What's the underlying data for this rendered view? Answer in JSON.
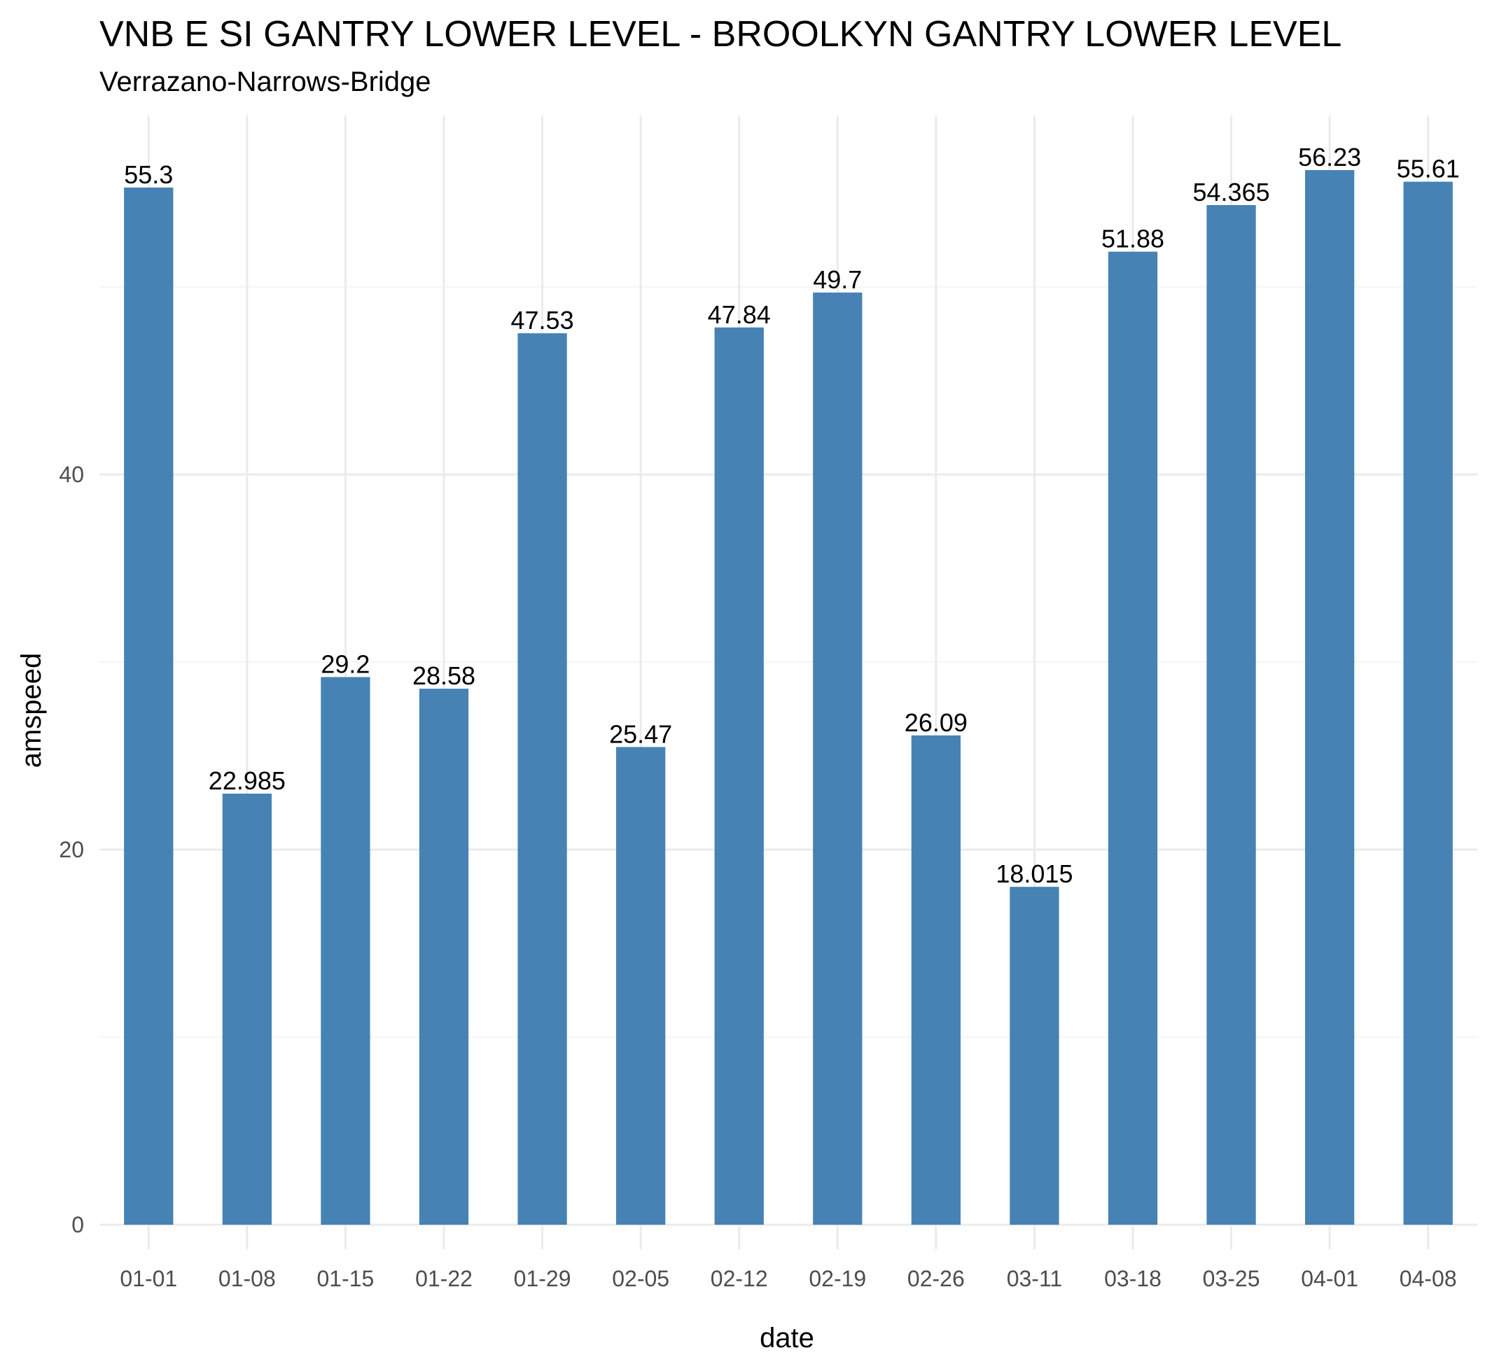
{
  "chart_data": {
    "type": "bar",
    "title": "VNB E SI GANTRY LOWER LEVEL - BROOLKYN GANTRY LOWER LEVEL",
    "subtitle": "Verrazano-Narrows-Bridge",
    "xlabel": "date",
    "ylabel": "amspeed",
    "categories": [
      "01-01",
      "01-08",
      "01-15",
      "01-22",
      "01-29",
      "02-05",
      "02-12",
      "02-19",
      "02-26",
      "03-11",
      "03-18",
      "03-25",
      "04-01",
      "04-08"
    ],
    "values": [
      55.3,
      22.985,
      29.2,
      28.58,
      47.53,
      25.47,
      47.84,
      49.7,
      26.09,
      18.015,
      51.88,
      54.365,
      56.23,
      55.61
    ],
    "value_labels": [
      "55.3",
      "22.985",
      "29.2",
      "28.58",
      "47.53",
      "25.47",
      "47.84",
      "49.7",
      "26.09",
      "18.015",
      "51.88",
      "54.365",
      "56.23",
      "55.61"
    ],
    "y_ticks": [
      0,
      20,
      40
    ],
    "y_tick_labels": [
      "0",
      "20",
      "40"
    ],
    "ylim": [
      0,
      59
    ],
    "bar_color": "#4682b4",
    "grid": true,
    "legend": "none"
  }
}
